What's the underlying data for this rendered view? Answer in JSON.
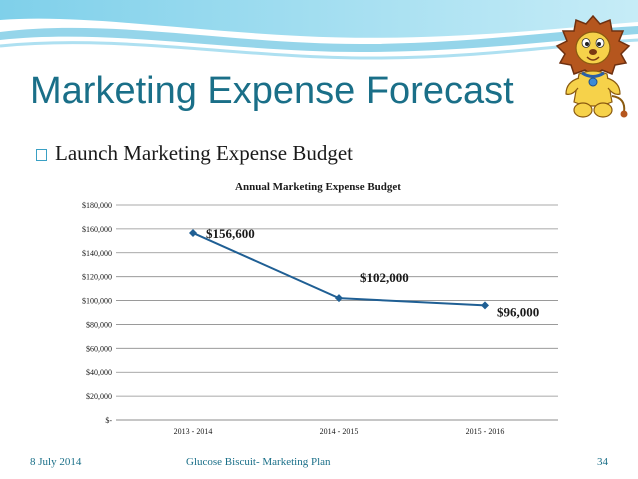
{
  "slide": {
    "title": "Marketing Expense Forecast",
    "bullet": "Launch Marketing Expense Budget",
    "footer": {
      "date": "8 July 2014",
      "center": "Glucose Biscuit- Marketing Plan",
      "page": "34"
    },
    "mascot_icon": "cartoon-lion-mascot"
  },
  "colors": {
    "title": "#1a6f88",
    "accent": "#3aa0c4",
    "series": "#1f5f94",
    "gridline": "#8c8c8c"
  },
  "chart_data": {
    "type": "line",
    "title": "Annual Marketing Expense Budget",
    "categories": [
      "2013 - 2014",
      "2014 - 2015",
      "2015 - 2016"
    ],
    "series": [
      {
        "values": [
          156600,
          102000,
          96000
        ]
      }
    ],
    "data_labels": [
      "$156,600",
      "$102,000",
      "$96,000"
    ],
    "y_ticks": [
      0,
      20000,
      40000,
      60000,
      80000,
      100000,
      120000,
      140000,
      160000,
      180000
    ],
    "y_tick_labels": [
      "$-",
      "$20,000",
      "$40,000",
      "$60,000",
      "$80,000",
      "$100,000",
      "$120,000",
      "$140,000",
      "$160,000",
      "$180,000"
    ],
    "ylim": [
      0,
      180000
    ],
    "grid": true,
    "legend": "none",
    "marker": "diamond"
  }
}
